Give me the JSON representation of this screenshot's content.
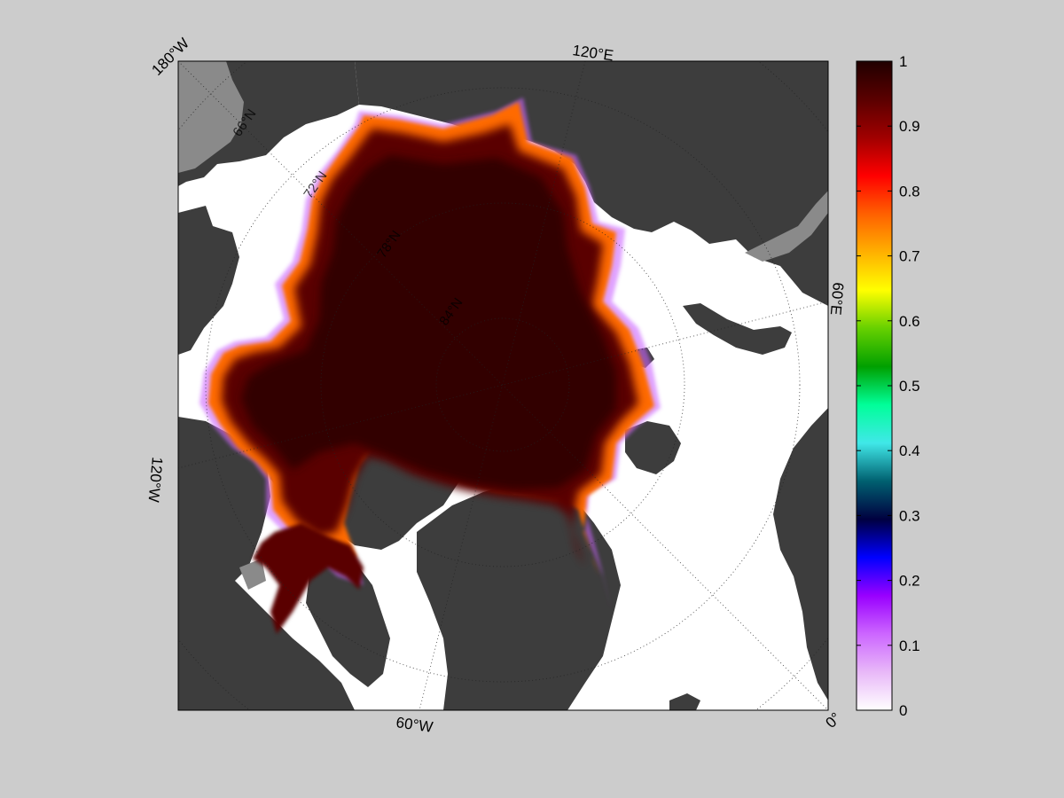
{
  "map": {
    "longitude_labels": [
      "180°W",
      "120°E",
      "60°E",
      "0°",
      "60°W",
      "120°W"
    ],
    "latitude_labels": [
      "66°N",
      "72°N",
      "78°N",
      "84°N"
    ],
    "colors": {
      "ocean": "#ffffff",
      "land": "#3d3d3d",
      "lake": "#8a8a8a",
      "ice_full": "#300000",
      "ice_edge": "#ff8a00",
      "grid": "#222222"
    }
  },
  "colorbar": {
    "ticks": [
      "1",
      "0.9",
      "0.8",
      "0.7",
      "0.6",
      "0.5",
      "0.4",
      "0.3",
      "0.2",
      "0.1",
      "0"
    ],
    "stops": [
      "#ffffff",
      "#e8b8f8",
      "#cc66ff",
      "#9900ff",
      "#0000ff",
      "#000040",
      "#006070",
      "#40e8e8",
      "#00ff99",
      "#00a000",
      "#66d000",
      "#ffff00",
      "#ffb000",
      "#ff6000",
      "#ff0000",
      "#a00000",
      "#5a0000",
      "#200000"
    ]
  }
}
